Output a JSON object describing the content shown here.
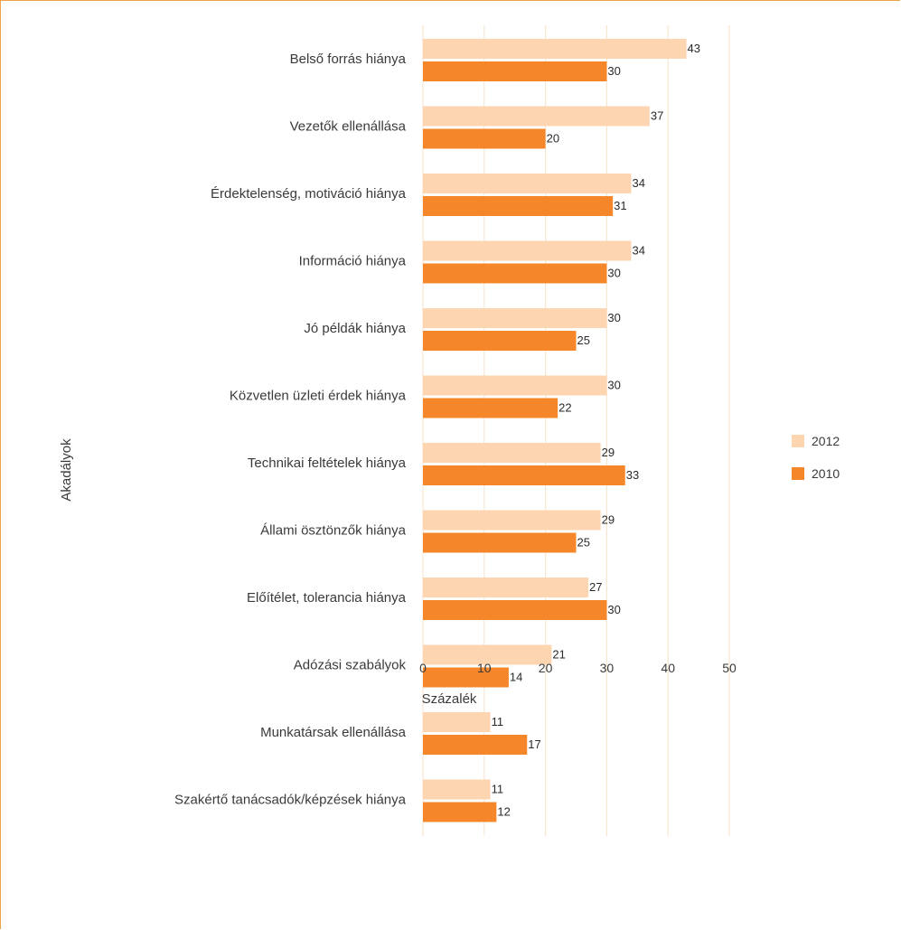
{
  "chart_data": {
    "type": "bar",
    "orientation": "horizontal",
    "categories": [
      "Belső forrás hiánya",
      "Vezetők ellenállása",
      "Érdektelenség, motiváció hiánya",
      "Információ hiánya",
      "Jó példák hiánya",
      "Közvetlen üzleti érdek hiánya",
      "Technikai feltételek hiánya",
      "Állami ösztönzők hiánya",
      "Előítélet, tolerancia hiánya",
      "Adózási szabályok",
      "Munkatársak ellenállása",
      "Szakértő tanácsadók/képzések hiánya"
    ],
    "series": [
      {
        "name": "2012",
        "color": "#fdd5b1",
        "values": [
          43,
          37,
          34,
          34,
          30,
          30,
          29,
          29,
          27,
          21,
          11,
          11
        ]
      },
      {
        "name": "2010",
        "color": "#f5872a",
        "values": [
          30,
          20,
          31,
          30,
          25,
          22,
          33,
          25,
          30,
          14,
          17,
          12
        ]
      }
    ],
    "xlabel": "Százalék",
    "ylabel": "Akadályok",
    "xlim": [
      0,
      50
    ],
    "xticks": [
      "0",
      "10",
      "20",
      "30",
      "40",
      "50"
    ],
    "grid": true,
    "legend_position": "right"
  },
  "colors": {
    "frame": "#f0a24a",
    "grid": "#f6e7d3"
  }
}
